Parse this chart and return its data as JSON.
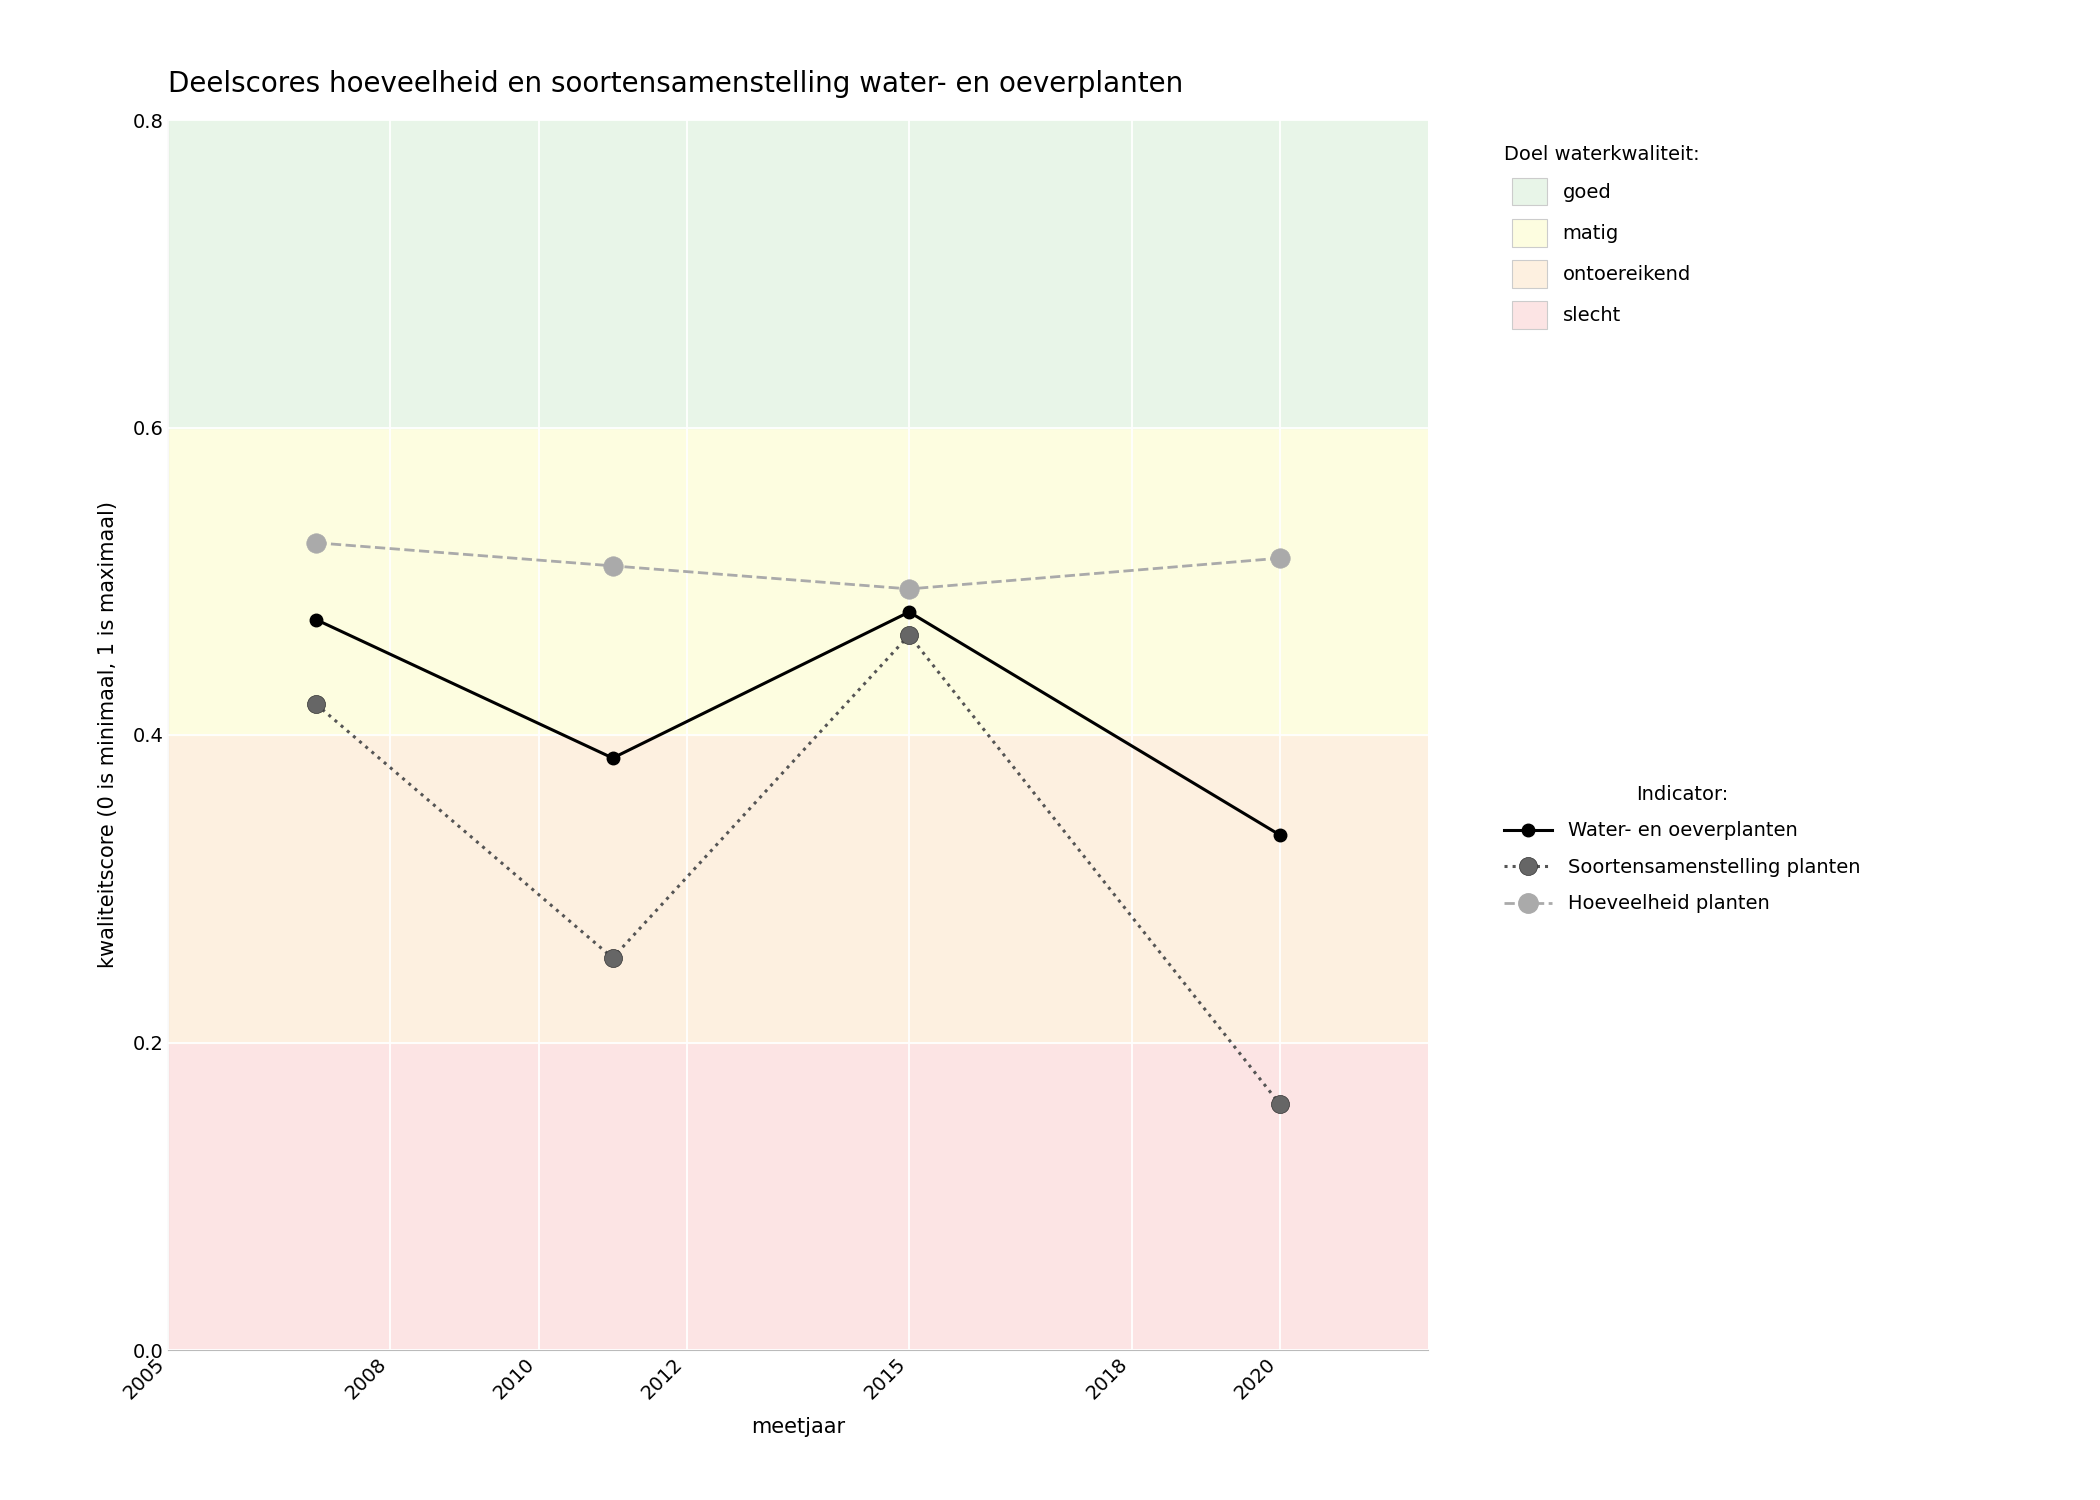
{
  "title": "Deelscores hoeveelheid en soortensamenstelling water- en oeverplanten",
  "xlabel": "meetjaar",
  "ylabel": "kwaliteitscore (0 is minimaal, 1 is maximaal)",
  "xlim": [
    2005,
    2022
  ],
  "ylim": [
    0.0,
    0.8
  ],
  "xticks": [
    2005,
    2008,
    2010,
    2012,
    2015,
    2018,
    2020
  ],
  "yticks": [
    0.0,
    0.2,
    0.4,
    0.6,
    0.8
  ],
  "bg_color": "#ffffff",
  "zones": [
    {
      "ymin": 0.0,
      "ymax": 0.2,
      "color": "#fce4e4",
      "label": "slecht"
    },
    {
      "ymin": 0.2,
      "ymax": 0.4,
      "color": "#fdf0e0",
      "label": "ontoereikend"
    },
    {
      "ymin": 0.4,
      "ymax": 0.6,
      "color": "#fdfde0",
      "label": "matig"
    },
    {
      "ymin": 0.6,
      "ymax": 0.8,
      "color": "#e8f5e8",
      "label": "goed"
    }
  ],
  "series": {
    "water_oever": {
      "years": [
        2007,
        2011,
        2015,
        2020
      ],
      "values": [
        0.475,
        0.385,
        0.48,
        0.335
      ],
      "color": "#000000",
      "linestyle": "solid",
      "linewidth": 2.2,
      "marker": "o",
      "markersize": 9,
      "markerfacecolor": "#000000",
      "label": "Water- en oeverplanten"
    },
    "soortensamenstelling": {
      "years": [
        2007,
        2011,
        2015,
        2020
      ],
      "values": [
        0.42,
        0.255,
        0.465,
        0.16
      ],
      "color": "#555555",
      "linestyle": "dotted",
      "linewidth": 2.2,
      "marker": "o",
      "markersize": 13,
      "markerfacecolor": "#666666",
      "label": "Soortensamenstelling planten"
    },
    "hoeveelheid": {
      "years": [
        2007,
        2011,
        2015,
        2020
      ],
      "values": [
        0.525,
        0.51,
        0.495,
        0.515
      ],
      "color": "#aaaaaa",
      "linestyle": "dashed",
      "linewidth": 2.0,
      "marker": "o",
      "markersize": 14,
      "markerfacecolor": "#aaaaaa",
      "label": "Hoeveelheid planten"
    }
  },
  "legend_quality_title": "Doel waterkwaliteit:",
  "legend_indicator_title": "Indicator:",
  "legend_quality_colors": [
    "#e8f5e8",
    "#fdfde0",
    "#fdf0e0",
    "#fce4e4"
  ],
  "legend_quality_labels": [
    "goed",
    "matig",
    "ontoereikend",
    "slecht"
  ],
  "title_fontsize": 20,
  "axis_label_fontsize": 15,
  "tick_fontsize": 14,
  "legend_fontsize": 14
}
